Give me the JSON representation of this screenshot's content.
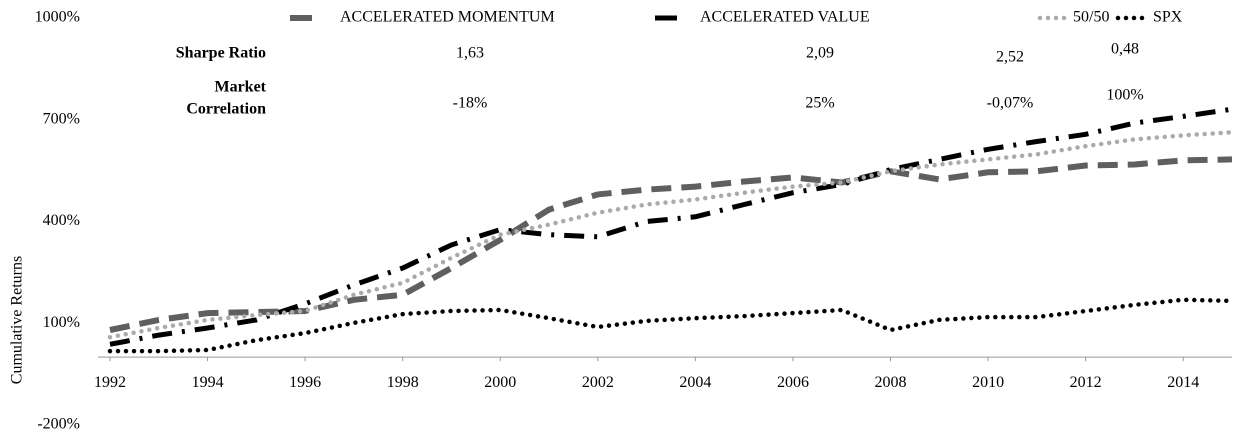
{
  "chart_data": {
    "type": "line",
    "y_label": "Cumulative Returns",
    "x": [
      1992,
      1993,
      1994,
      1995,
      1996,
      1997,
      1998,
      1999,
      2000,
      2001,
      2002,
      2003,
      2004,
      2005,
      2006,
      2007,
      2008,
      2009,
      2010,
      2011,
      2012,
      2013,
      2014,
      2015
    ],
    "series": [
      {
        "name": "ACCELERATED MOMENTUM",
        "color": "#5f5f5f",
        "line_style": "dashed",
        "values": [
          80,
          110,
          130,
          133,
          136,
          169,
          184,
          263,
          346,
          435,
          480,
          494,
          503,
          518,
          530,
          515,
          548,
          524,
          545,
          548,
          565,
          568,
          580,
          583
        ]
      },
      {
        "name": "ACCELERATED VALUE",
        "color": "#000000",
        "line_style": "dashdot",
        "values": [
          38,
          65,
          86,
          110,
          157,
          213,
          263,
          331,
          376,
          361,
          355,
          400,
          414,
          450,
          485,
          509,
          553,
          583,
          613,
          636,
          657,
          690,
          710,
          731
        ]
      },
      {
        "name": "50/50",
        "color": "#aaaaaa",
        "line_style": "dotted",
        "values": [
          59,
          86,
          110,
          124,
          136,
          184,
          219,
          293,
          361,
          391,
          426,
          450,
          465,
          485,
          503,
          515,
          548,
          568,
          583,
          598,
          622,
          642,
          654,
          663
        ]
      },
      {
        "name": "SPX",
        "color": "#000000",
        "line_style": "dotted",
        "values": [
          18,
          18,
          21,
          50,
          71,
          101,
          127,
          136,
          139,
          115,
          89,
          107,
          115,
          121,
          130,
          139,
          80,
          110,
          118,
          118,
          136,
          154,
          169,
          166
        ]
      }
    ],
    "xlim": [
      1992,
      2015
    ],
    "xticks": [
      1992,
      1994,
      1996,
      1998,
      2000,
      2002,
      2004,
      2006,
      2008,
      2010,
      2012,
      2014
    ],
    "ylim": [
      -200,
      1000
    ],
    "yticks": [
      {
        "value": -200,
        "label": "-200%"
      },
      {
        "value": 100,
        "label": "100%"
      },
      {
        "value": 400,
        "label": "400%"
      },
      {
        "value": 700,
        "label": "700%"
      },
      {
        "value": 1000,
        "label": "1000%"
      }
    ],
    "grid": false,
    "legend": "top",
    "stats_table": [
      {
        "label": [
          "Sharpe Ratio"
        ],
        "values": [
          "1,63",
          "2,09",
          "2,52",
          "0,48"
        ]
      },
      {
        "label": [
          "Market",
          "Correlation"
        ],
        "values": [
          "-18%",
          "25%",
          "-0,07%",
          "100%"
        ]
      }
    ]
  }
}
